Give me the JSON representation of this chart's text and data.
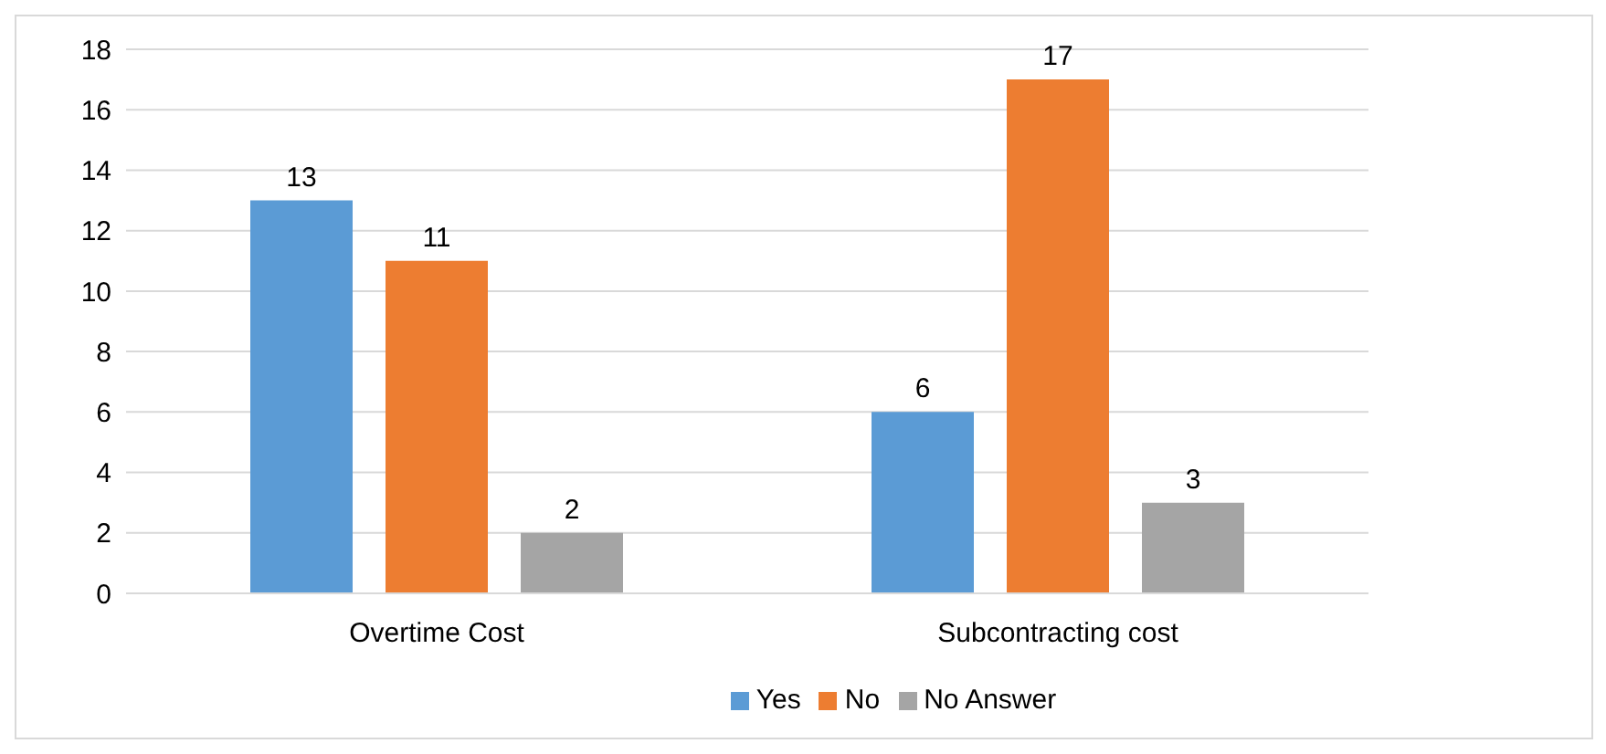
{
  "chart_data": {
    "type": "bar",
    "categories": [
      "Overtime Cost",
      "Subcontracting cost"
    ],
    "series": [
      {
        "name": "Yes",
        "color": "#5b9bd5",
        "values": [
          13,
          6
        ]
      },
      {
        "name": "No",
        "color": "#ed7d31",
        "values": [
          11,
          17
        ]
      },
      {
        "name": "No Answer",
        "color": "#a5a5a5",
        "values": [
          2,
          3
        ]
      }
    ],
    "ylim": [
      0,
      18
    ],
    "yticks": [
      0,
      2,
      4,
      6,
      8,
      10,
      12,
      14,
      16,
      18
    ],
    "grid": "y",
    "legend": "bottom",
    "data_labels": true
  }
}
